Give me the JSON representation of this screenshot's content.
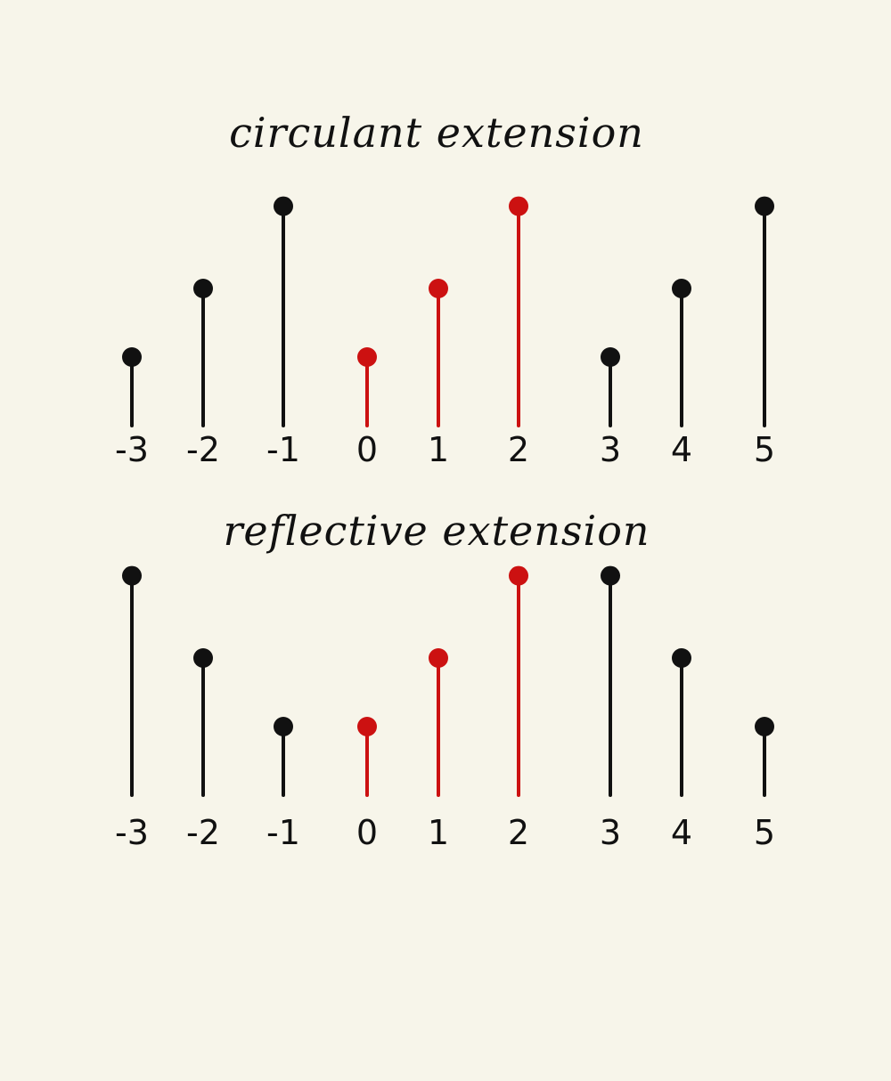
{
  "colors": {
    "background": "#f7f5ea",
    "ink": "#111111",
    "highlight": "#cc1111"
  },
  "chart_data": [
    {
      "type": "stem",
      "title": "circulant  extension",
      "x": [
        -3,
        -2,
        -1,
        0,
        1,
        2,
        3,
        4,
        5
      ],
      "tick_labels": [
        "-3",
        "-2",
        "-1",
        "0",
        "1",
        "2",
        "3",
        "4",
        "5"
      ],
      "values": [
        1.0,
        2.0,
        3.2,
        1.0,
        2.0,
        3.2,
        1.0,
        2.0,
        3.2
      ],
      "highlighted": [
        false,
        false,
        false,
        true,
        true,
        true,
        false,
        false,
        false
      ]
    },
    {
      "type": "stem",
      "title": "reflective  extension",
      "x": [
        -3,
        -2,
        -1,
        0,
        1,
        2,
        3,
        4,
        5
      ],
      "tick_labels": [
        "-3",
        "-2",
        "-1",
        "0",
        "1",
        "2",
        "3",
        "4",
        "5"
      ],
      "values": [
        3.2,
        2.0,
        1.0,
        1.0,
        2.0,
        3.2,
        3.2,
        2.0,
        1.0
      ],
      "highlighted": [
        false,
        false,
        false,
        true,
        true,
        true,
        false,
        false,
        false
      ]
    }
  ]
}
